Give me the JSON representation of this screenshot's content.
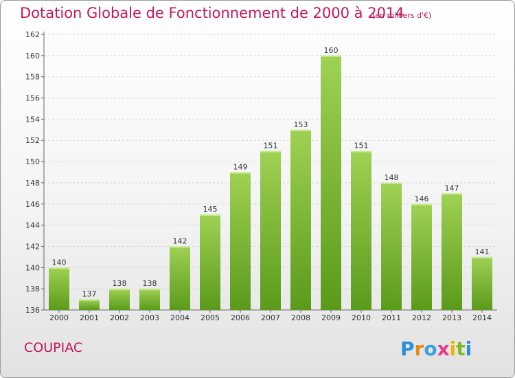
{
  "header": {
    "title": "Dotation Globale de Fonctionnement de 2000 à 2014",
    "unit": "(en milliers d'€)"
  },
  "footer": {
    "commune": "COUPIAC",
    "logo_text": "Proxiti"
  },
  "colors": {
    "title": "#c2185b",
    "bar_top": "#9fd154",
    "bar_bottom": "#5a9a1a",
    "grid": "#d5d5d5",
    "axis": "#666666"
  },
  "chart_data": {
    "type": "bar",
    "categories": [
      "2000",
      "2001",
      "2002",
      "2003",
      "2004",
      "2005",
      "2006",
      "2007",
      "2008",
      "2009",
      "2010",
      "2011",
      "2012",
      "2013",
      "2014"
    ],
    "values": [
      140,
      137,
      138,
      138,
      142,
      145,
      149,
      151,
      153,
      160,
      151,
      148,
      146,
      147,
      141
    ],
    "ylim": [
      136,
      162
    ],
    "yticks": [
      136,
      138,
      140,
      142,
      144,
      146,
      148,
      150,
      152,
      154,
      156,
      158,
      160,
      162
    ],
    "grid": true,
    "title": "Dotation Globale de Fonctionnement de 2000 à 2014",
    "xlabel": "",
    "ylabel": ""
  }
}
